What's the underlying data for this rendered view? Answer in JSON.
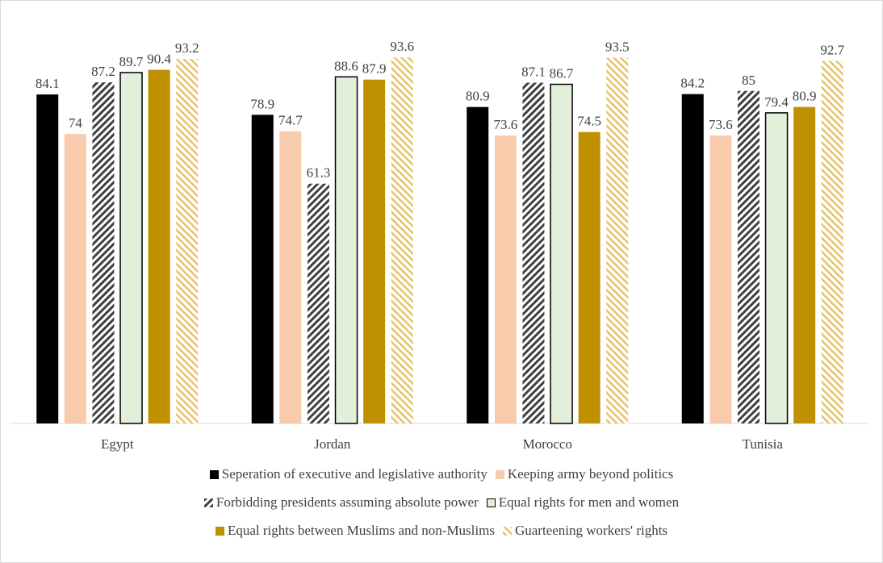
{
  "chart_data": {
    "type": "bar",
    "categories": [
      "Egypt",
      "Jordan",
      "Morocco",
      "Tunisia"
    ],
    "series": [
      {
        "name": "Seperation of executive and legislative authority",
        "values": [
          84.1,
          78.9,
          80.9,
          84.2
        ],
        "color": "#000000",
        "pattern": "solid"
      },
      {
        "name": "Keeping army beyond politics",
        "values": [
          74,
          74.7,
          73.6,
          73.6
        ],
        "color": "#f8cbad",
        "pattern": "solid"
      },
      {
        "name": "Forbidding presidents assuming absolute power",
        "values": [
          87.2,
          61.3,
          87.1,
          85
        ],
        "color": "#404040",
        "pattern": "diag-dark"
      },
      {
        "name": "Equal rights for men and women",
        "values": [
          89.7,
          88.6,
          86.7,
          79.4
        ],
        "color": "#e2efda",
        "pattern": "outlined"
      },
      {
        "name": "Equal rights between Muslims and non-Muslims",
        "values": [
          90.4,
          87.9,
          74.5,
          80.9
        ],
        "color": "#bf9000",
        "pattern": "solid"
      },
      {
        "name": "Guarteening workers' rights",
        "values": [
          93.2,
          93.6,
          93.5,
          92.7
        ],
        "color": "#e6c36b",
        "pattern": "diag-light"
      }
    ],
    "ylim": [
      0,
      100
    ],
    "xlabel": "",
    "ylabel": "",
    "grid": false,
    "legend_position": "bottom"
  }
}
